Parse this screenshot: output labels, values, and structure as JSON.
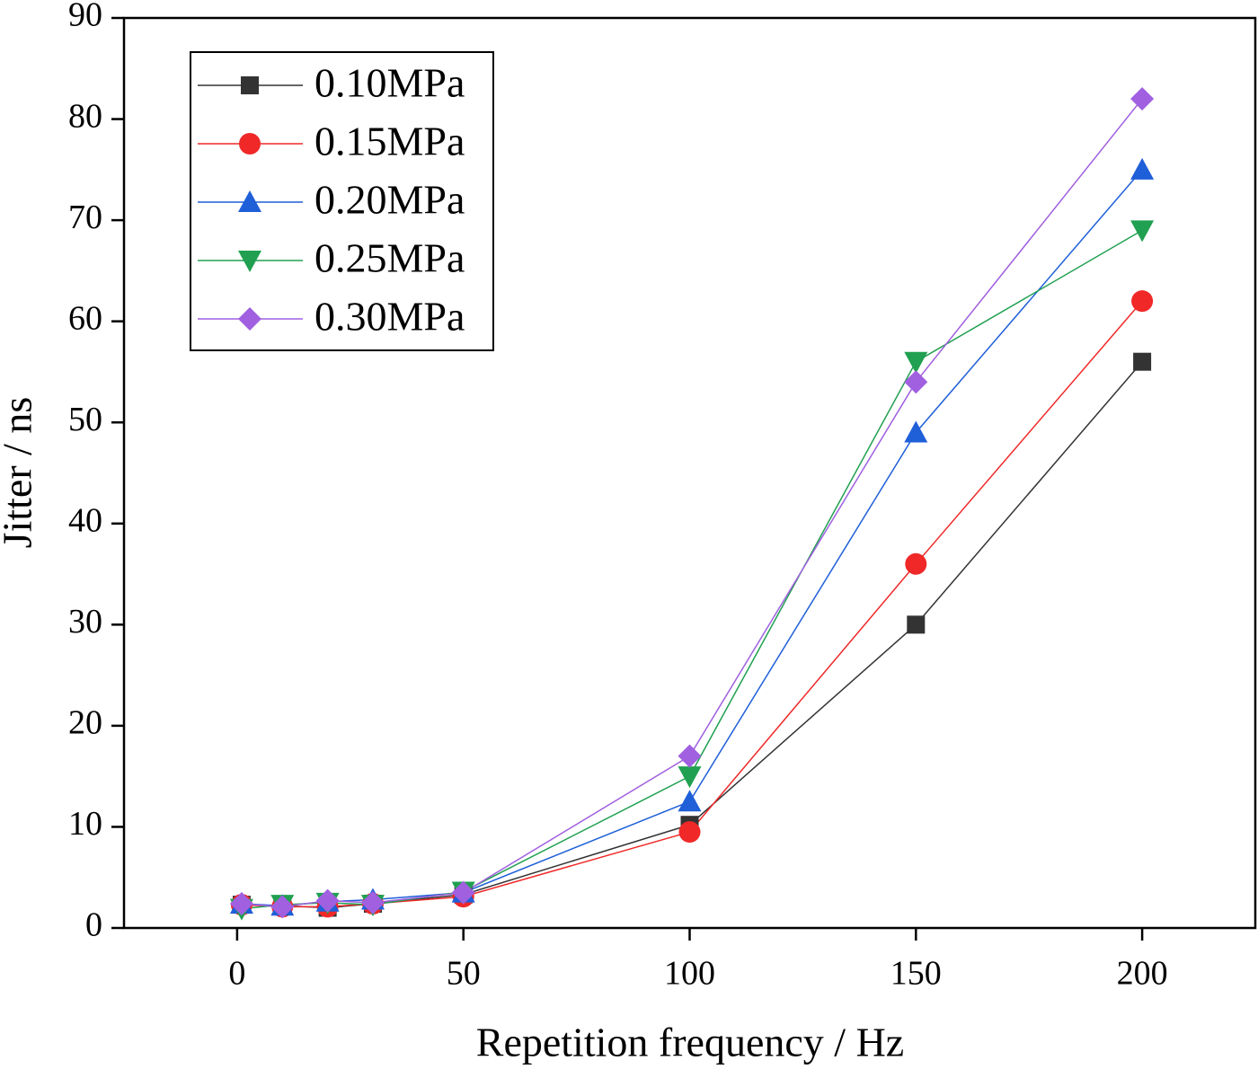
{
  "chart_data": {
    "type": "line",
    "xlabel": "Repetition frequency / Hz",
    "ylabel": "Jitter / ns",
    "x": [
      1,
      10,
      20,
      30,
      50,
      100,
      150,
      200
    ],
    "xlim": [
      -25,
      225
    ],
    "xticks": [
      0,
      50,
      100,
      150,
      200
    ],
    "ylim": [
      0,
      90
    ],
    "yticks": [
      0,
      10,
      20,
      30,
      40,
      50,
      60,
      70,
      80,
      90
    ],
    "legend": "upper left",
    "series": [
      {
        "name": "0.10MPa",
        "color": "#333333",
        "marker": "square",
        "values": [
          2.3,
          2.2,
          2.0,
          2.4,
          3.3,
          10.2,
          30,
          56
        ]
      },
      {
        "name": "0.15MPa",
        "color": "#f02828",
        "marker": "circle",
        "values": [
          2.3,
          2.1,
          2.1,
          2.4,
          3.1,
          9.5,
          36,
          62
        ]
      },
      {
        "name": "0.20MPa",
        "color": "#1f5fd8",
        "marker": "triangle-up",
        "values": [
          2.4,
          2.2,
          2.6,
          2.8,
          3.5,
          12.5,
          49,
          75
        ]
      },
      {
        "name": "0.25MPa",
        "color": "#20a050",
        "marker": "triangle-down",
        "values": [
          1.9,
          2.3,
          2.5,
          2.3,
          3.6,
          15,
          56,
          69
        ]
      },
      {
        "name": "0.30MPa",
        "color": "#a060e0",
        "marker": "diamond",
        "values": [
          2.4,
          2.1,
          2.7,
          2.5,
          3.5,
          17,
          54,
          82
        ]
      }
    ]
  }
}
